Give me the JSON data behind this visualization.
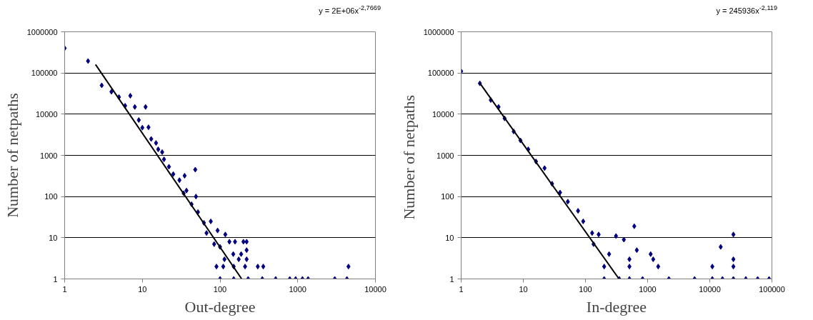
{
  "chart_data": [
    {
      "type": "scatter",
      "xlabel": "Out-degree",
      "ylabel": "Number of netpaths",
      "annotations": [
        "y = 2E+06x$^{-2,7669}$"
      ],
      "log": "xy",
      "grid": "y",
      "xlim": [
        1,
        10000
      ],
      "xticks": [
        1,
        10,
        100,
        1000,
        10000
      ],
      "ylim": [
        1,
        1000000
      ],
      "yticks": [
        1,
        10,
        100,
        1000,
        10000,
        100000,
        1000000
      ],
      "series": [
        {
          "color": "#000080",
          "marker": "diamond",
          "x": [
            1,
            2,
            3,
            4,
            5,
            6,
            7,
            8,
            9,
            10,
            11,
            12,
            13,
            15,
            16,
            18,
            19,
            22,
            25,
            30,
            34,
            35,
            37,
            43,
            48,
            49,
            52,
            62,
            67,
            76,
            84,
            90,
            93,
            100,
            110,
            114,
            117,
            132,
            148,
            150,
            156,
            174,
            187,
            200,
            210,
            220,
            220,
            220,
            306,
            360,
            4500,
            100,
            150,
            230,
            350,
            520,
            790,
            940,
            1150,
            1360,
            3000,
            4300
          ],
          "values": [
            400000,
            195000,
            50000,
            35000,
            26000,
            16000,
            28000,
            15000,
            7200,
            4700,
            15000,
            4800,
            2500,
            2000,
            1400,
            1200,
            800,
            530,
            350,
            250,
            120,
            320,
            140,
            65,
            450,
            100,
            42,
            23,
            13,
            25,
            7,
            2,
            15,
            6,
            2,
            3,
            12,
            8,
            4,
            2,
            8,
            3,
            4,
            8,
            2,
            8,
            5,
            3,
            2,
            2,
            2,
            1,
            1,
            1,
            1,
            1,
            1,
            1,
            1,
            1,
            1,
            1
          ]
        },
        {
          "type": "line",
          "color": "#000000",
          "x": [
            2.5,
            190
          ],
          "values": [
            160000,
            1
          ]
        }
      ]
    },
    {
      "type": "scatter",
      "xlabel": "In-degree",
      "ylabel": "Number of  netpaths",
      "annotations": [
        "y = 245936x$^{-2,119}$"
      ],
      "log": "xy",
      "grid": "y",
      "xlim": [
        1,
        100000
      ],
      "xticks": [
        1,
        10,
        100,
        1000,
        10000,
        100000
      ],
      "ylim": [
        1,
        1000000
      ],
      "yticks": [
        1,
        10,
        100,
        1000,
        10000,
        100000,
        1000000
      ],
      "series": [
        {
          "color": "#000080",
          "marker": "diamond",
          "x": [
            1,
            2,
            3,
            4,
            5,
            7,
            9,
            12,
            16,
            22,
            29,
            39,
            52,
            76,
            92,
            128,
            135,
            163,
            200,
            200,
            240,
            310,
            350,
            415,
            510,
            510,
            510,
            610,
            670,
            830,
            1120,
            1230,
            1480,
            2200,
            5700,
            11000,
            11000,
            15000,
            16000,
            24000,
            24000,
            24000,
            24000,
            38000,
            59000,
            90000
          ],
          "values": [
            110000,
            56000,
            22000,
            15000,
            7900,
            3800,
            2300,
            1400,
            710,
            490,
            205,
            125,
            75,
            45,
            25,
            13,
            7,
            12,
            2,
            1,
            4,
            11,
            1,
            9,
            3,
            2,
            1,
            19,
            5,
            1,
            4,
            3,
            2,
            1,
            1,
            2,
            1,
            6,
            1,
            12,
            3,
            2,
            1,
            1,
            1,
            1
          ]
        },
        {
          "type": "line",
          "color": "#000000",
          "x": [
            2,
            347
          ],
          "values": [
            56600,
            1
          ]
        }
      ]
    }
  ]
}
